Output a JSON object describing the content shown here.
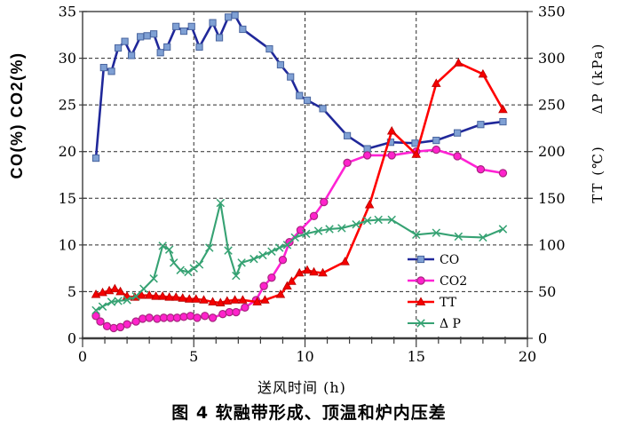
{
  "chart_data": {
    "type": "line",
    "title": "图 4 软融带形成、顶温和炉内压差",
    "xlabel": "送风时间 (h)",
    "ylabel_left": "CO(%)  CO2(%)",
    "ylabel_right_upper": "ΔP (kPa)",
    "ylabel_right_lower": "TT (℃)",
    "grid": "dashed",
    "legend_position": "inside right, lower half",
    "x_axis": {
      "min": 0,
      "max": 20,
      "major_ticks": [
        0,
        5,
        10,
        15,
        20
      ],
      "minor_tick_step": 1,
      "gridline_ticks": [
        5,
        10,
        15
      ]
    },
    "y_axis_left": {
      "min": 0,
      "max": 35,
      "ticks": [
        0,
        5,
        10,
        15,
        20,
        25,
        30,
        35
      ],
      "gridline_ticks": [
        5,
        10,
        15,
        20,
        25,
        30
      ]
    },
    "y_axis_right": {
      "min": 0,
      "max": 350,
      "ticks": [
        0,
        50,
        100,
        150,
        200,
        250,
        300,
        350
      ]
    },
    "series": [
      {
        "id": "co",
        "name": "CO",
        "legend_label": "CO",
        "axis": "left",
        "color": "#20289a",
        "line_width": 2.6,
        "marker": "square",
        "marker_fill": "#7fa0d4",
        "marker_stroke": "#49659f",
        "points": [
          [
            0.6,
            19.3
          ],
          [
            0.95,
            29.0
          ],
          [
            1.3,
            28.6
          ],
          [
            1.6,
            31.1
          ],
          [
            1.9,
            31.8
          ],
          [
            2.2,
            30.3
          ],
          [
            2.6,
            32.3
          ],
          [
            2.9,
            32.4
          ],
          [
            3.2,
            32.6
          ],
          [
            3.5,
            30.6
          ],
          [
            3.8,
            31.2
          ],
          [
            4.2,
            33.4
          ],
          [
            4.55,
            32.9
          ],
          [
            4.9,
            33.4
          ],
          [
            5.25,
            31.2
          ],
          [
            5.85,
            33.8
          ],
          [
            6.15,
            32.2
          ],
          [
            6.55,
            34.4
          ],
          [
            6.85,
            34.6
          ],
          [
            7.2,
            33.1
          ],
          [
            8.4,
            31.0
          ],
          [
            8.9,
            29.3
          ],
          [
            9.35,
            28.0
          ],
          [
            9.75,
            26.0
          ],
          [
            10.1,
            25.5
          ],
          [
            10.8,
            24.6
          ],
          [
            11.9,
            21.7
          ],
          [
            12.8,
            20.3
          ],
          [
            13.85,
            21.0
          ],
          [
            14.95,
            20.9
          ],
          [
            15.9,
            21.2
          ],
          [
            16.85,
            22.0
          ],
          [
            17.9,
            22.9
          ],
          [
            18.9,
            23.2
          ]
        ]
      },
      {
        "id": "co2",
        "name": "CO2",
        "legend_label": "CO2",
        "axis": "left",
        "color": "#ff22d4",
        "line_width": 2.6,
        "marker": "circle",
        "marker_fill": "#ff22cc",
        "marker_stroke": "#a8247f",
        "points": [
          [
            0.6,
            2.4
          ],
          [
            0.8,
            1.8
          ],
          [
            1.1,
            1.3
          ],
          [
            1.4,
            1.1
          ],
          [
            1.7,
            1.2
          ],
          [
            2.0,
            1.5
          ],
          [
            2.4,
            1.8
          ],
          [
            2.7,
            2.1
          ],
          [
            3.0,
            2.2
          ],
          [
            3.35,
            2.1
          ],
          [
            3.65,
            2.2
          ],
          [
            3.95,
            2.2
          ],
          [
            4.25,
            2.2
          ],
          [
            4.55,
            2.3
          ],
          [
            4.85,
            2.4
          ],
          [
            5.15,
            2.2
          ],
          [
            5.5,
            2.4
          ],
          [
            5.85,
            2.2
          ],
          [
            6.3,
            2.6
          ],
          [
            6.6,
            2.8
          ],
          [
            6.9,
            2.8
          ],
          [
            7.3,
            3.3
          ],
          [
            7.8,
            4.1
          ],
          [
            8.15,
            5.6
          ],
          [
            8.5,
            6.5
          ],
          [
            9.0,
            8.4
          ],
          [
            9.3,
            10.3
          ],
          [
            9.8,
            11.6
          ],
          [
            10.4,
            13.1
          ],
          [
            10.85,
            14.6
          ],
          [
            11.9,
            18.8
          ],
          [
            12.8,
            19.6
          ],
          [
            13.9,
            19.6
          ],
          [
            15.0,
            20.0
          ],
          [
            15.9,
            20.2
          ],
          [
            16.85,
            19.5
          ],
          [
            17.9,
            18.1
          ],
          [
            18.9,
            17.7
          ]
        ]
      },
      {
        "id": "tt",
        "name": "TT",
        "legend_label": "TT",
        "axis": "right",
        "color": "#ff0000",
        "line_width": 2.6,
        "marker": "triangle",
        "marker_fill": "#f50000",
        "marker_stroke": "#b80000",
        "points": [
          [
            0.6,
            47
          ],
          [
            0.9,
            49
          ],
          [
            1.2,
            51
          ],
          [
            1.45,
            53
          ],
          [
            1.7,
            50
          ],
          [
            2.0,
            45
          ],
          [
            2.35,
            44
          ],
          [
            2.65,
            46
          ],
          [
            3.0,
            46
          ],
          [
            3.3,
            45
          ],
          [
            3.6,
            45
          ],
          [
            3.9,
            44
          ],
          [
            4.2,
            44
          ],
          [
            4.5,
            43
          ],
          [
            4.8,
            42
          ],
          [
            5.1,
            42
          ],
          [
            5.45,
            41
          ],
          [
            5.85,
            39
          ],
          [
            6.2,
            38
          ],
          [
            6.5,
            40
          ],
          [
            6.85,
            41
          ],
          [
            7.2,
            41
          ],
          [
            7.85,
            39
          ],
          [
            8.2,
            41
          ],
          [
            8.9,
            47
          ],
          [
            9.2,
            56
          ],
          [
            9.4,
            61
          ],
          [
            9.75,
            70
          ],
          [
            10.1,
            73
          ],
          [
            10.4,
            71
          ],
          [
            10.8,
            70
          ],
          [
            11.8,
            82
          ],
          [
            12.9,
            143
          ],
          [
            13.9,
            222
          ],
          [
            15.0,
            197
          ],
          [
            15.9,
            273
          ],
          [
            16.9,
            295
          ],
          [
            18.0,
            283
          ],
          [
            18.9,
            245
          ]
        ]
      },
      {
        "id": "dp",
        "name": "ΔP",
        "legend_label": "Δ P",
        "axis": "right",
        "color": "#36a273",
        "line_width": 2.1,
        "marker": "x",
        "marker_fill": "none",
        "marker_stroke": "#36a273",
        "points": [
          [
            0.6,
            30
          ],
          [
            0.9,
            34
          ],
          [
            1.3,
            39
          ],
          [
            1.6,
            40
          ],
          [
            2.0,
            41
          ],
          [
            2.4,
            45
          ],
          [
            2.75,
            53
          ],
          [
            3.2,
            64
          ],
          [
            3.6,
            99
          ],
          [
            3.9,
            95
          ],
          [
            4.1,
            81
          ],
          [
            4.4,
            73
          ],
          [
            4.75,
            71
          ],
          [
            5.0,
            75
          ],
          [
            5.25,
            79
          ],
          [
            5.7,
            97
          ],
          [
            6.2,
            145
          ],
          [
            6.55,
            94
          ],
          [
            6.9,
            67
          ],
          [
            7.15,
            81
          ],
          [
            7.7,
            85
          ],
          [
            8.1,
            89
          ],
          [
            8.5,
            93
          ],
          [
            8.85,
            97
          ],
          [
            9.2,
            100
          ],
          [
            9.55,
            108
          ],
          [
            10.05,
            112
          ],
          [
            10.6,
            115
          ],
          [
            11.1,
            117
          ],
          [
            11.65,
            118
          ],
          [
            12.3,
            122
          ],
          [
            12.8,
            126
          ],
          [
            13.3,
            127
          ],
          [
            13.9,
            127
          ],
          [
            15.0,
            111
          ],
          [
            15.9,
            113
          ],
          [
            16.9,
            109
          ],
          [
            18.0,
            108
          ],
          [
            18.9,
            117
          ]
        ]
      }
    ]
  }
}
